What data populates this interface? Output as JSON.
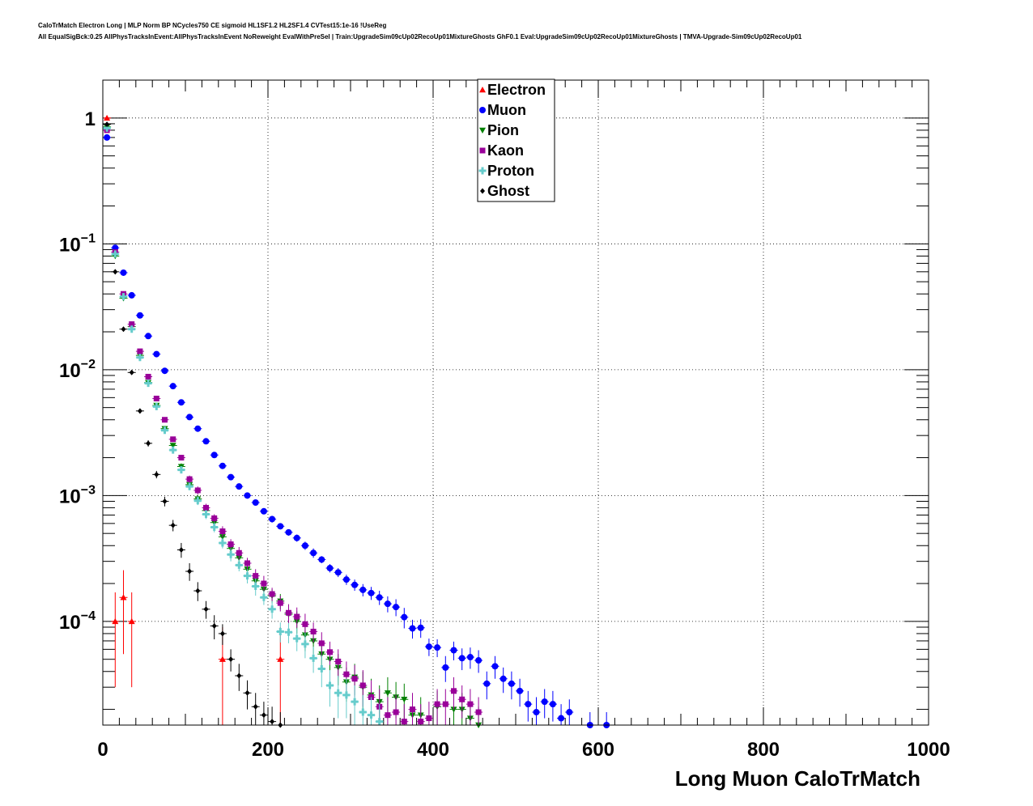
{
  "header": {
    "line1": "CaloTrMatch Electron Long | MLP Norm BP NCycles750 CE sigmoid HL1SF1.2 HL2SF1.4 CVTest15:1e-16 !UseReg",
    "line2": "All EqualSigBck:0.25 AllPhysTracksInEvent:AllPhysTracksInEvent NoReweight EvalWithPreSel | Train:UpgradeSim09cUp02RecoUp01MixtureGhosts GhF0.1 Eval:UpgradeSim09cUp02RecoUp01MixtureGhosts | TMVA-Upgrade-Sim09cUp02RecoUp01"
  },
  "chart_data": {
    "type": "scatter",
    "xlabel": "Long Muon CaloTrMatch",
    "ylabel": "",
    "xlim": [
      0,
      1000
    ],
    "ylim": [
      1.5e-05,
      2.0
    ],
    "y_scale": "log",
    "grid": true,
    "legend_position": "top-center",
    "x_ticks": [
      "0",
      "200",
      "400",
      "600",
      "800",
      "1000"
    ],
    "y_ticks": [
      {
        "value": 1,
        "base": "1",
        "exp": ""
      },
      {
        "value": 0.1,
        "base": "10",
        "exp": "−1"
      },
      {
        "value": 0.01,
        "base": "10",
        "exp": "−2"
      },
      {
        "value": 0.001,
        "base": "10",
        "exp": "−3"
      },
      {
        "value": 0.0001,
        "base": "10",
        "exp": "−4"
      }
    ],
    "series": [
      {
        "name": "Electron",
        "color": "#ff0000",
        "marker": "triangle",
        "points": [
          [
            5,
            1.0,
            0.001
          ],
          [
            15,
            0.0001,
            7e-05
          ],
          [
            25,
            0.000155,
            0.0001
          ],
          [
            35,
            0.0001,
            7e-05
          ],
          [
            145,
            5e-05,
            4e-05
          ],
          [
            215,
            5e-05,
            4e-05
          ]
        ]
      },
      {
        "name": "Muon",
        "color": "#0000ff",
        "marker": "circle",
        "points": [
          [
            5,
            0.7,
            0.005
          ],
          [
            15,
            0.093,
            0.001
          ],
          [
            25,
            0.059,
            0.0008
          ],
          [
            35,
            0.039,
            0.0006
          ],
          [
            45,
            0.027,
            0.0005
          ],
          [
            55,
            0.0185,
            0.0004
          ],
          [
            65,
            0.0133,
            0.0003
          ],
          [
            75,
            0.0098,
            0.00025
          ],
          [
            85,
            0.0074,
            0.0002
          ],
          [
            95,
            0.0055,
            0.00015
          ],
          [
            105,
            0.0042,
            0.00012
          ],
          [
            115,
            0.0034,
            0.0001
          ],
          [
            125,
            0.0027,
            9e-05
          ],
          [
            135,
            0.0021,
            8e-05
          ],
          [
            145,
            0.00172,
            7e-05
          ],
          [
            155,
            0.0014,
            6e-05
          ],
          [
            165,
            0.00118,
            5e-05
          ],
          [
            175,
            0.001,
            5e-05
          ],
          [
            185,
            0.00088,
            4e-05
          ],
          [
            195,
            0.00075,
            4e-05
          ],
          [
            205,
            0.00065,
            4e-05
          ],
          [
            215,
            0.00057,
            3e-05
          ],
          [
            225,
            0.00051,
            3e-05
          ],
          [
            235,
            0.00046,
            3e-05
          ],
          [
            245,
            0.0004,
            3e-05
          ],
          [
            255,
            0.00035,
            3e-05
          ],
          [
            265,
            0.00031,
            2e-05
          ],
          [
            275,
            0.000265,
            2e-05
          ],
          [
            285,
            0.000245,
            2e-05
          ],
          [
            295,
            0.000215,
            2e-05
          ],
          [
            305,
            0.000195,
            2e-05
          ],
          [
            315,
            0.000178,
            2e-05
          ],
          [
            325,
            0.000168,
            2e-05
          ],
          [
            335,
            0.000155,
            2e-05
          ],
          [
            345,
            0.000138,
            2e-05
          ],
          [
            355,
            0.00013,
            2e-05
          ],
          [
            365,
            0.000108,
            2e-05
          ],
          [
            375,
            8.8e-05,
            1.5e-05
          ],
          [
            385,
            8.9e-05,
            1.5e-05
          ],
          [
            395,
            6.3e-05,
            1e-05
          ],
          [
            405,
            6.2e-05,
            1e-05
          ],
          [
            415,
            4.3e-05,
            1e-05
          ],
          [
            425,
            5.9e-05,
            1e-05
          ],
          [
            435,
            5.1e-05,
            1e-05
          ],
          [
            445,
            5.2e-05,
            1e-05
          ],
          [
            455,
            4.9e-05,
            1e-05
          ],
          [
            465,
            3.2e-05,
            8e-06
          ],
          [
            475,
            4.4e-05,
            9e-06
          ],
          [
            485,
            3.5e-05,
            8e-06
          ],
          [
            495,
            3.2e-05,
            8e-06
          ],
          [
            505,
            2.8e-05,
            7e-06
          ],
          [
            515,
            2.2e-05,
            6e-06
          ],
          [
            525,
            1.9e-05,
            6e-06
          ],
          [
            535,
            2.3e-05,
            6e-06
          ],
          [
            545,
            2.2e-05,
            6e-06
          ],
          [
            555,
            1.7e-05,
            5e-06
          ],
          [
            565,
            1.9e-05,
            5e-06
          ],
          [
            590,
            1.5e-05,
            4e-06
          ],
          [
            610,
            1.5e-05,
            4e-06
          ]
        ]
      },
      {
        "name": "Pion",
        "color": "#008000",
        "marker": "triangle-down",
        "points": [
          [
            5,
            0.85,
            0.005
          ],
          [
            15,
            0.08,
            0.001
          ],
          [
            25,
            0.037,
            0.0007
          ],
          [
            35,
            0.022,
            0.0005
          ],
          [
            45,
            0.013,
            0.0004
          ],
          [
            55,
            0.0079,
            0.0003
          ],
          [
            65,
            0.0052,
            0.0002
          ],
          [
            75,
            0.0034,
            0.00015
          ],
          [
            85,
            0.0025,
            0.00012
          ],
          [
            95,
            0.0017,
            0.0001
          ],
          [
            105,
            0.00122,
            8e-05
          ],
          [
            115,
            0.00094,
            7e-05
          ],
          [
            125,
            0.00076,
            6e-05
          ],
          [
            135,
            0.00061,
            5e-05
          ],
          [
            145,
            0.00047,
            4e-05
          ],
          [
            155,
            0.00038,
            4e-05
          ],
          [
            165,
            0.00032,
            3e-05
          ],
          [
            175,
            0.00026,
            3e-05
          ],
          [
            185,
            0.00021,
            3e-05
          ],
          [
            195,
            0.00018,
            3e-05
          ],
          [
            205,
            0.00016,
            2e-05
          ],
          [
            215,
            0.000145,
            2e-05
          ],
          [
            225,
            0.000114,
            2e-05
          ],
          [
            235,
            0.0001,
            2e-05
          ],
          [
            245,
            7.8e-05,
            2e-05
          ],
          [
            255,
            7e-05,
            1.5e-05
          ],
          [
            265,
            5.5e-05,
            1.5e-05
          ],
          [
            275,
            5e-05,
            1.2e-05
          ],
          [
            285,
            4.3e-05,
            1.2e-05
          ],
          [
            295,
            3.3e-05,
            1e-05
          ],
          [
            305,
            3.6e-05,
            1e-05
          ],
          [
            315,
            3e-05,
            1e-05
          ],
          [
            325,
            2.6e-05,
            9e-06
          ],
          [
            335,
            2.3e-05,
            8e-06
          ],
          [
            345,
            2.7e-05,
            9e-06
          ],
          [
            355,
            2.5e-05,
            8e-06
          ],
          [
            365,
            2.4e-05,
            8e-06
          ],
          [
            375,
            1.8e-05,
            7e-06
          ],
          [
            385,
            1.8e-05,
            7e-06
          ],
          [
            405,
            2.1e-05,
            7e-06
          ],
          [
            425,
            2e-05,
            7e-06
          ],
          [
            435,
            2e-05,
            7e-06
          ],
          [
            445,
            1.7e-05,
            6e-06
          ],
          [
            455,
            1.5e-05,
            6e-06
          ]
        ]
      },
      {
        "name": "Kaon",
        "color": "#990099",
        "marker": "square",
        "points": [
          [
            5,
            0.8,
            0.005
          ],
          [
            15,
            0.086,
            0.001
          ],
          [
            25,
            0.04,
            0.0007
          ],
          [
            35,
            0.023,
            0.0005
          ],
          [
            45,
            0.014,
            0.0004
          ],
          [
            55,
            0.0088,
            0.0003
          ],
          [
            65,
            0.0059,
            0.0002
          ],
          [
            75,
            0.004,
            0.00016
          ],
          [
            85,
            0.0028,
            0.00013
          ],
          [
            95,
            0.002,
            0.0001
          ],
          [
            105,
            0.00135,
            9e-05
          ],
          [
            115,
            0.0011,
            8e-05
          ],
          [
            125,
            0.0008,
            6e-05
          ],
          [
            135,
            0.00066,
            5e-05
          ],
          [
            145,
            0.00052,
            5e-05
          ],
          [
            155,
            0.00041,
            4e-05
          ],
          [
            165,
            0.00035,
            4e-05
          ],
          [
            175,
            0.00029,
            3e-05
          ],
          [
            185,
            0.00023,
            3e-05
          ],
          [
            195,
            0.0002,
            3e-05
          ],
          [
            205,
            0.000165,
            2e-05
          ],
          [
            215,
            0.00014,
            2e-05
          ],
          [
            225,
            0.000117,
            2e-05
          ],
          [
            235,
            0.000109,
            2e-05
          ],
          [
            245,
            9.5e-05,
            2e-05
          ],
          [
            255,
            8.3e-05,
            1.5e-05
          ],
          [
            265,
            6.7e-05,
            1.5e-05
          ],
          [
            275,
            5.7e-05,
            1.2e-05
          ],
          [
            285,
            4.8e-05,
            1.2e-05
          ],
          [
            295,
            3.8e-05,
            1e-05
          ],
          [
            305,
            3.5e-05,
            1e-05
          ],
          [
            315,
            3.1e-05,
            1e-05
          ],
          [
            325,
            2.5e-05,
            9e-06
          ],
          [
            335,
            2.1e-05,
            8e-06
          ],
          [
            345,
            1.8e-05,
            7e-06
          ],
          [
            355,
            1.9e-05,
            7e-06
          ],
          [
            365,
            1.6e-05,
            6e-06
          ],
          [
            375,
            2e-05,
            7e-06
          ],
          [
            385,
            1.6e-05,
            6e-06
          ],
          [
            395,
            1.7e-05,
            6e-06
          ],
          [
            405,
            2.2e-05,
            7e-06
          ],
          [
            415,
            2.2e-05,
            7e-06
          ],
          [
            425,
            2.8e-05,
            8e-06
          ],
          [
            435,
            2.4e-05,
            7e-06
          ],
          [
            445,
            2.2e-05,
            7e-06
          ],
          [
            455,
            1.9e-05,
            6e-06
          ]
        ]
      },
      {
        "name": "Proton",
        "color": "#66cccc",
        "marker": "cross",
        "points": [
          [
            5,
            0.83,
            0.005
          ],
          [
            15,
            0.083,
            0.001
          ],
          [
            25,
            0.038,
            0.0007
          ],
          [
            35,
            0.021,
            0.0005
          ],
          [
            45,
            0.0125,
            0.0004
          ],
          [
            55,
            0.0078,
            0.0003
          ],
          [
            65,
            0.0051,
            0.0002
          ],
          [
            75,
            0.0033,
            0.00015
          ],
          [
            85,
            0.0023,
            0.00012
          ],
          [
            95,
            0.0016,
            0.0001
          ],
          [
            105,
            0.00118,
            8e-05
          ],
          [
            115,
            0.00091,
            7e-05
          ],
          [
            125,
            0.00071,
            6e-05
          ],
          [
            135,
            0.00056,
            5e-05
          ],
          [
            145,
            0.00042,
            4e-05
          ],
          [
            155,
            0.00034,
            4e-05
          ],
          [
            165,
            0.00028,
            3e-05
          ],
          [
            175,
            0.00023,
            3e-05
          ],
          [
            185,
            0.00019,
            3e-05
          ],
          [
            195,
            0.000155,
            2e-05
          ],
          [
            205,
            0.000125,
            2e-05
          ],
          [
            215,
            8.3e-05,
            1.5e-05
          ],
          [
            225,
            8.2e-05,
            1.5e-05
          ],
          [
            235,
            7.3e-05,
            1.5e-05
          ],
          [
            245,
            6.6e-05,
            1.5e-05
          ],
          [
            255,
            5.1e-05,
            1.2e-05
          ],
          [
            265,
            4.2e-05,
            1.2e-05
          ],
          [
            275,
            3.1e-05,
            1e-05
          ],
          [
            285,
            2.7e-05,
            1e-05
          ],
          [
            295,
            2.6e-05,
            9e-06
          ],
          [
            305,
            2.3e-05,
            8e-06
          ],
          [
            315,
            1.9e-05,
            7e-06
          ],
          [
            325,
            1.8e-05,
            7e-06
          ],
          [
            335,
            1.6e-05,
            6e-06
          ]
        ]
      },
      {
        "name": "Ghost",
        "color": "#000000",
        "marker": "diamond",
        "points": [
          [
            5,
            0.89,
            0.005
          ],
          [
            15,
            0.06,
            0.001
          ],
          [
            25,
            0.021,
            0.0005
          ],
          [
            35,
            0.0095,
            0.0003
          ],
          [
            45,
            0.0047,
            0.0002
          ],
          [
            55,
            0.0026,
            0.00015
          ],
          [
            65,
            0.00147,
            0.0001
          ],
          [
            75,
            0.0009,
            8e-05
          ],
          [
            85,
            0.00058,
            6e-05
          ],
          [
            95,
            0.00037,
            5e-05
          ],
          [
            105,
            0.00025,
            4e-05
          ],
          [
            115,
            0.000175,
            3e-05
          ],
          [
            125,
            0.000125,
            2e-05
          ],
          [
            135,
            9.2e-05,
            2e-05
          ],
          [
            145,
            8e-05,
            1.5e-05
          ],
          [
            155,
            5e-05,
            1e-05
          ],
          [
            165,
            3.7e-05,
            9e-06
          ],
          [
            175,
            2.7e-05,
            7e-06
          ],
          [
            185,
            2.1e-05,
            6e-06
          ],
          [
            195,
            1.8e-05,
            5e-06
          ],
          [
            205,
            1.6e-05,
            5e-06
          ],
          [
            215,
            1.5e-05,
            4e-06
          ]
        ]
      }
    ]
  }
}
